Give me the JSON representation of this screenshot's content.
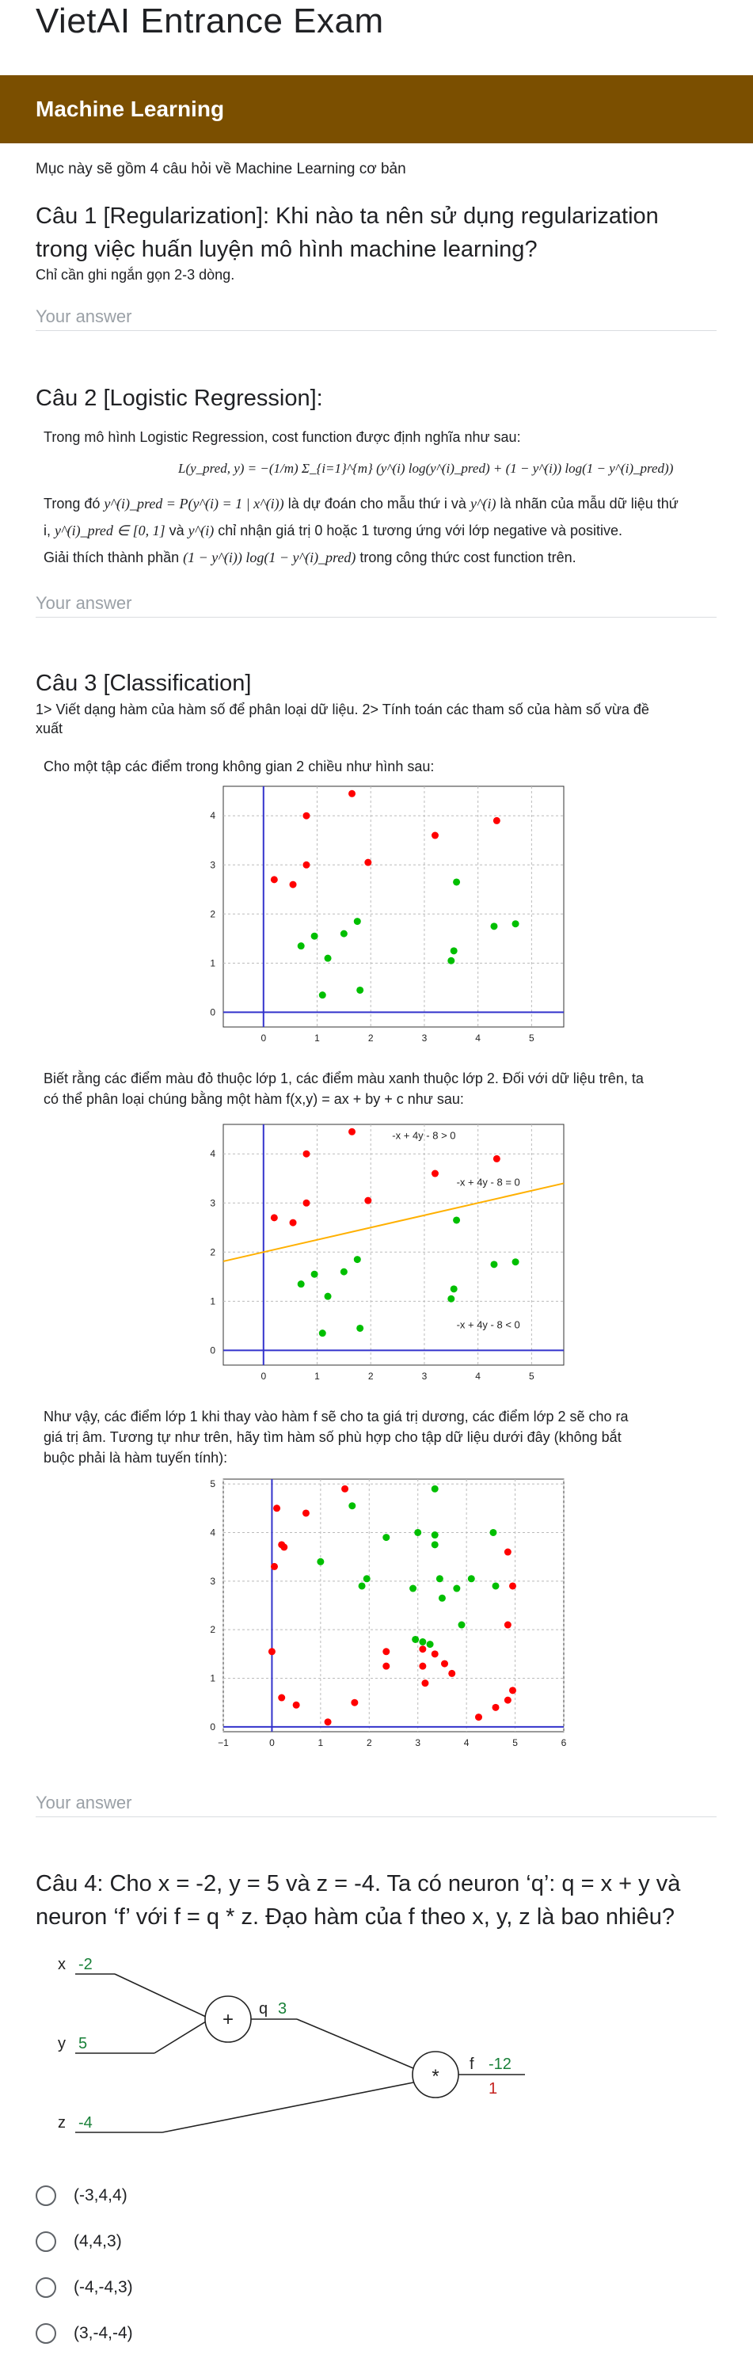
{
  "form": {
    "title": "VietAI Entrance Exam"
  },
  "section": {
    "title": "Machine Learning",
    "description": "Mục này sẽ gồm 4 câu hỏi về Machine Learning cơ bản"
  },
  "q1": {
    "title_line1": "Câu 1 [Regularization]: Khi nào ta nên sử dụng regularization",
    "title_line2": "trong việc huấn luyện mô hình machine learning?",
    "help": "Chỉ cần ghi ngắn gọn 2-3 dòng.",
    "answer_placeholder": "Your answer"
  },
  "q2": {
    "title": "Câu 2 [Logistic Regression]:",
    "intro": "Trong mô hình Logistic Regression, cost function được định nghĩa như sau:",
    "formula": "L(y_pred, y) = −(1/m) Σ_{i=1}^{m} (y^(i) log(y^(i)_pred) + (1 − y^(i)) log(1 − y^(i)_pred))",
    "line1a": "Trong đó",
    "line1b": "y^(i)_pred = P(y^(i) = 1 | x^(i))",
    "line1c": "là dự đoán cho mẫu thứ i và",
    "line1d": "y^(i)",
    "line1e": "là nhãn của mẫu dữ liệu thứ",
    "line2a": "i,",
    "line2b": "y^(i)_pred ∈ [0, 1]",
    "line2c": "và",
    "line2d": "y^(i)",
    "line2e": "chỉ nhận giá trị 0 hoặc 1 tương ứng với lớp negative và positive.",
    "line3a": "Giải thích thành phần",
    "line3b": "(1 − y^(i)) log(1 − y^(i)_pred)",
    "line3c": "trong công thức cost function trên.",
    "answer_placeholder": "Your answer"
  },
  "q3": {
    "title": "Câu 3 [Classification]",
    "help_line1": "1> Viết dạng hàm của hàm số để phân loại dữ liệu. 2> Tính toán các tham số của hàm số vừa đề",
    "help_line2": "xuất",
    "intro": "Cho một tập các điểm trong không gian 2 chiều như hình sau:",
    "para2_line1": "Biết rằng các điểm màu đỏ thuộc lớp 1, các điểm màu xanh thuộc lớp 2. Đối với dữ liệu trên, ta",
    "para2_line2": "có thể phân loại chúng bằng một hàm f(x,y) = ax + by + c như sau:",
    "para3_line1": "Như vậy, các điểm lớp 1 khi thay vào hàm f sẽ cho ta giá trị dương, các điểm lớp 2 sẽ cho ra",
    "para3_line2": "giá trị âm. Tương tự như trên, hãy tìm hàm số phù hợp cho tập dữ liệu dưới đây (không bắt",
    "para3_line3": "buộc phải là hàm tuyến tính):",
    "answer_placeholder": "Your answer"
  },
  "q4": {
    "title_line1": "Câu 4: Cho x = -2, y = 5 và z = -4. Ta có neuron ‘q’: q = x + y và",
    "title_line2": "neuron ‘f’ với f = q * z. Đạo hàm của f theo x, y, z là bao nhiêu?",
    "graph": {
      "x_label": "x",
      "x_val": "-2",
      "y_label": "y",
      "y_val": "5",
      "z_label": "z",
      "z_val": "-4",
      "plus": "+",
      "times": "*",
      "q_label": "q",
      "q_val": "3",
      "f_label": "f",
      "f_val": "-12",
      "f_grad": "1"
    },
    "options": [
      "(-3,4,4)",
      "(4,4,3)",
      "(-4,-4,3)",
      "(3,-4,-4)"
    ]
  },
  "colors": {
    "section_bar": "#7b4f00",
    "red_point": "#ff0000",
    "green_point": "#00bf00",
    "axis": "#3333cc",
    "boundary": "#ffb000",
    "value_green": "#188038",
    "grad_red": "#c5221f"
  },
  "chart_data": [
    {
      "type": "scatter",
      "title": "",
      "xlim": [
        -0.75,
        5.6
      ],
      "ylim": [
        -0.3,
        4.6
      ],
      "xticks": [
        "0",
        "1",
        "2",
        "3",
        "4",
        "5"
      ],
      "yticks": [
        "0",
        "1",
        "2",
        "3",
        "4"
      ],
      "grid": true,
      "series": [
        {
          "color": "red",
          "points": [
            [
              0.2,
              2.7
            ],
            [
              0.55,
              2.6
            ],
            [
              0.8,
              3.0
            ],
            [
              0.8,
              4.0
            ],
            [
              1.65,
              4.45
            ],
            [
              1.95,
              3.05
            ],
            [
              3.2,
              3.6
            ],
            [
              4.35,
              3.9
            ]
          ]
        },
        {
          "color": "green",
          "points": [
            [
              0.7,
              1.35
            ],
            [
              0.95,
              1.55
            ],
            [
              1.1,
              0.35
            ],
            [
              1.2,
              1.1
            ],
            [
              1.5,
              1.6
            ],
            [
              1.75,
              1.85
            ],
            [
              1.8,
              0.45
            ],
            [
              3.5,
              1.05
            ],
            [
              3.55,
              1.25
            ],
            [
              3.6,
              2.65
            ],
            [
              4.3,
              1.75
            ],
            [
              4.7,
              1.8
            ]
          ]
        }
      ]
    },
    {
      "type": "scatter",
      "title": "",
      "xlim": [
        -0.75,
        5.6
      ],
      "ylim": [
        -0.3,
        4.6
      ],
      "xticks": [
        "0",
        "1",
        "2",
        "3",
        "4",
        "5"
      ],
      "yticks": [
        "0",
        "1",
        "2",
        "3",
        "4"
      ],
      "grid": true,
      "boundary": {
        "a": -1,
        "b": 4,
        "c": -8,
        "label": "-x + 4y - 8 = 0"
      },
      "annotations": [
        "-x + 4y - 8 > 0",
        "-x + 4y - 8 = 0",
        "-x + 4y - 8 < 0"
      ],
      "series": [
        {
          "color": "red",
          "points": [
            [
              0.2,
              2.7
            ],
            [
              0.55,
              2.6
            ],
            [
              0.8,
              3.0
            ],
            [
              0.8,
              4.0
            ],
            [
              1.65,
              4.45
            ],
            [
              1.95,
              3.05
            ],
            [
              3.2,
              3.6
            ],
            [
              4.35,
              3.9
            ]
          ]
        },
        {
          "color": "green",
          "points": [
            [
              0.7,
              1.35
            ],
            [
              0.95,
              1.55
            ],
            [
              1.1,
              0.35
            ],
            [
              1.2,
              1.1
            ],
            [
              1.5,
              1.6
            ],
            [
              1.75,
              1.85
            ],
            [
              1.8,
              0.45
            ],
            [
              3.5,
              1.05
            ],
            [
              3.55,
              1.25
            ],
            [
              3.6,
              2.65
            ],
            [
              4.3,
              1.75
            ],
            [
              4.7,
              1.8
            ]
          ]
        }
      ]
    },
    {
      "type": "scatter",
      "title": "",
      "xlim": [
        -1.0,
        6.0
      ],
      "ylim": [
        -0.1,
        5.1
      ],
      "xticks": [
        "−1",
        "0",
        "1",
        "2",
        "3",
        "4",
        "5",
        "6"
      ],
      "yticks": [
        "0",
        "1",
        "2",
        "3",
        "4",
        "5"
      ],
      "grid": true,
      "series": [
        {
          "color": "red",
          "points": [
            [
              0.1,
              4.5
            ],
            [
              0.2,
              3.75
            ],
            [
              0.25,
              3.7
            ],
            [
              0.05,
              3.3
            ],
            [
              0.7,
              4.4
            ],
            [
              1.5,
              4.9
            ],
            [
              0.0,
              1.55
            ],
            [
              0.2,
              0.6
            ],
            [
              0.5,
              0.45
            ],
            [
              1.15,
              0.1
            ],
            [
              1.7,
              0.5
            ],
            [
              2.35,
              1.55
            ],
            [
              2.35,
              1.25
            ],
            [
              3.1,
              1.6
            ],
            [
              3.1,
              1.25
            ],
            [
              3.15,
              0.9
            ],
            [
              3.35,
              1.5
            ],
            [
              3.7,
              1.1
            ],
            [
              3.55,
              1.3
            ],
            [
              4.25,
              0.2
            ],
            [
              4.6,
              0.4
            ],
            [
              4.95,
              0.75
            ],
            [
              4.85,
              0.55
            ],
            [
              4.95,
              2.9
            ],
            [
              4.85,
              2.1
            ],
            [
              4.85,
              3.6
            ]
          ]
        },
        {
          "color": "green",
          "points": [
            [
              1.0,
              3.4
            ],
            [
              1.65,
              4.55
            ],
            [
              1.95,
              3.05
            ],
            [
              1.85,
              2.9
            ],
            [
              2.35,
              3.9
            ],
            [
              2.9,
              2.85
            ],
            [
              3.0,
              4.0
            ],
            [
              3.35,
              3.95
            ],
            [
              3.35,
              3.75
            ],
            [
              3.35,
              4.9
            ],
            [
              3.45,
              3.05
            ],
            [
              3.5,
              2.65
            ],
            [
              3.8,
              2.85
            ],
            [
              3.9,
              2.1
            ],
            [
              4.1,
              3.05
            ],
            [
              4.6,
              2.9
            ],
            [
              4.55,
              4.0
            ],
            [
              2.95,
              1.8
            ],
            [
              3.1,
              1.75
            ],
            [
              3.25,
              1.7
            ]
          ]
        }
      ]
    }
  ]
}
